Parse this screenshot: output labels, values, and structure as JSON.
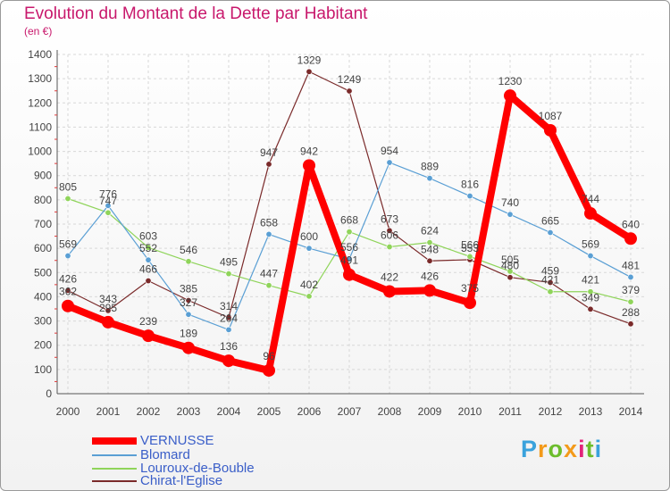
{
  "header": {
    "title": "Evolution du Montant de la Dette par Habitant",
    "unit": "(en €)"
  },
  "brand": {
    "letters": [
      "P",
      "r",
      "o",
      "x",
      "i",
      "t",
      "i"
    ],
    "colors": [
      "#3aa2dc",
      "#f39a1a",
      "#6cbd2c",
      "#f39a1a",
      "#e2247a",
      "#6cbd2c",
      "#3aa2dc"
    ]
  },
  "chart_data": {
    "type": "line",
    "title": "Evolution du Montant de la Dette par Habitant",
    "ylabel": "(en €)",
    "xlabel": "",
    "ylim": [
      0,
      1400
    ],
    "ytick_step": 100,
    "grid": true,
    "legend_position": "bottom-left",
    "x": [
      "2000",
      "2001",
      "2002",
      "2003",
      "2004",
      "2005",
      "2006",
      "2007",
      "2008",
      "2009",
      "2010",
      "2011",
      "2012",
      "2013",
      "2014"
    ],
    "series": [
      {
        "name": "VERNUSSE",
        "color": "#ff0000",
        "emphasis": true,
        "values": [
          362,
          295,
          239,
          189,
          136,
          96,
          942,
          491,
          422,
          426,
          375,
          1230,
          1087,
          744,
          640
        ],
        "labels": [
          "362",
          "295",
          "239",
          "189",
          "136",
          "96",
          "942",
          "491",
          "422",
          "426",
          "375",
          "1230",
          "1087",
          "744",
          "640"
        ]
      },
      {
        "name": "Blomard",
        "color": "#5a9fd4",
        "values": [
          569,
          776,
          552,
          327,
          264,
          658,
          600,
          556,
          954,
          889,
          816,
          740,
          665,
          569,
          481
        ],
        "labels": [
          "569",
          "776",
          "552",
          "327",
          "264",
          "658",
          "600",
          "556",
          "954",
          "889",
          "816",
          "740",
          "665",
          "569",
          "481"
        ]
      },
      {
        "name": "Louroux-de-Bouble",
        "color": "#8fd45a",
        "values": [
          805,
          747,
          603,
          546,
          495,
          447,
          402,
          668,
          606,
          624,
          566,
          505,
          421,
          421,
          379
        ],
        "labels": [
          "805",
          "747",
          "603",
          "546",
          "495",
          "447",
          "402",
          "668",
          "606",
          "624",
          "566",
          "505",
          "421",
          "421",
          "379"
        ]
      },
      {
        "name": "Chirat-l'Eglise",
        "color": "#7a2a2a",
        "values": [
          426,
          343,
          466,
          385,
          314,
          947,
          1329,
          1249,
          673,
          548,
          553,
          480,
          459,
          349,
          288
        ],
        "labels": [
          "426",
          "343",
          "466",
          "385",
          "314",
          "947",
          "1329",
          "1249",
          "673",
          "548",
          "553",
          "480",
          "459",
          "349",
          "288"
        ]
      }
    ]
  }
}
